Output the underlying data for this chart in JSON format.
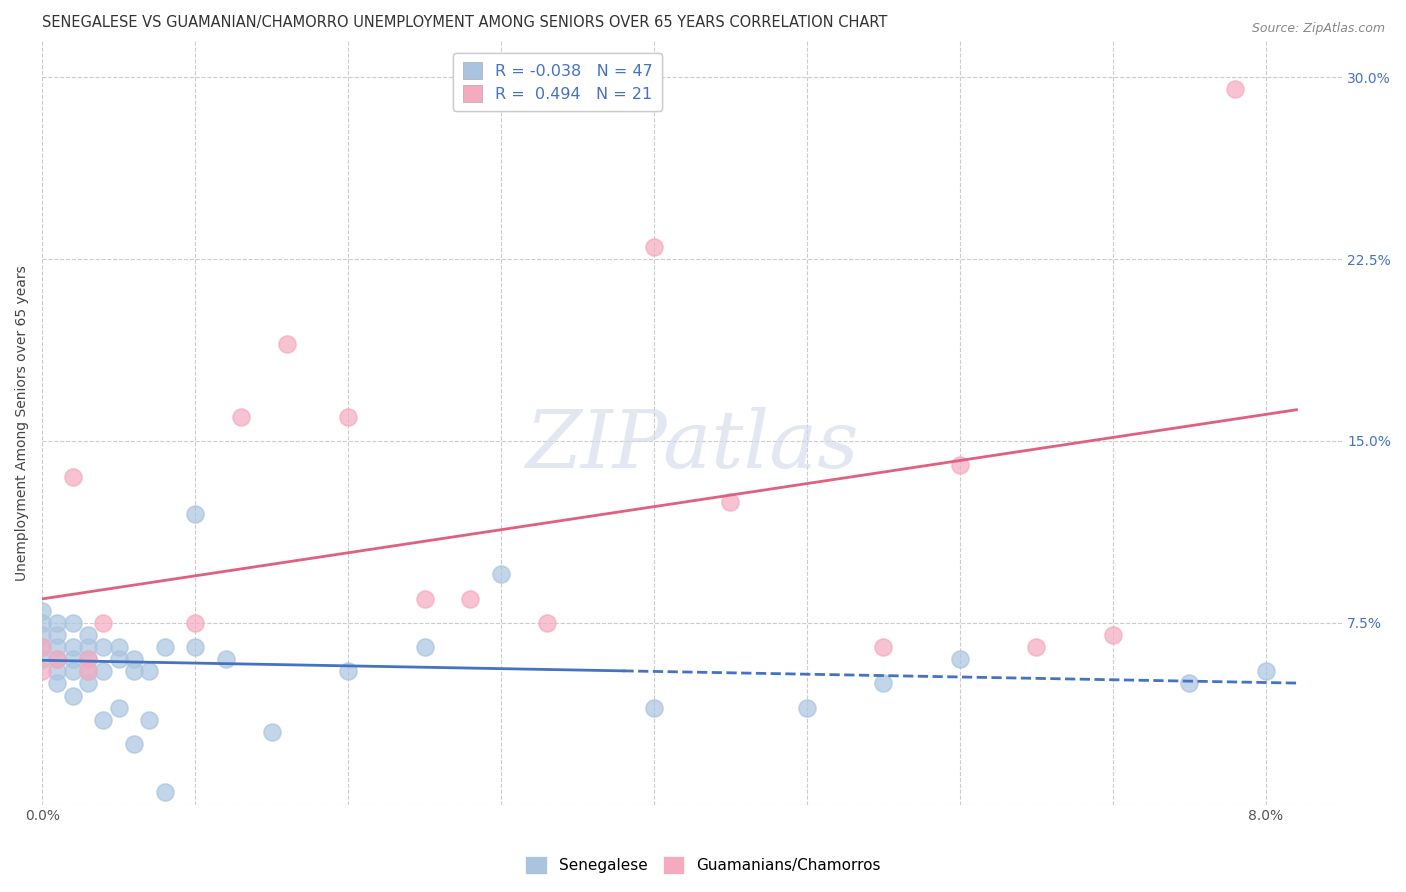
{
  "title": "SENEGALESE VS GUAMANIAN/CHAMORRO UNEMPLOYMENT AMONG SENIORS OVER 65 YEARS CORRELATION CHART",
  "source": "Source: ZipAtlas.com",
  "ylabel": "Unemployment Among Seniors over 65 years",
  "ylim": [
    0.0,
    0.315
  ],
  "xlim": [
    0.0,
    0.085
  ],
  "yticks": [
    0.0,
    0.075,
    0.15,
    0.225,
    0.3
  ],
  "ytick_labels_right": [
    "",
    "7.5%",
    "15.0%",
    "22.5%",
    "30.0%"
  ],
  "xtick_vals": [
    0.0,
    0.01,
    0.02,
    0.03,
    0.04,
    0.05,
    0.06,
    0.07,
    0.08
  ],
  "xtick_labels": [
    "0.0%",
    "",
    "",
    "",
    "",
    "",
    "",
    "",
    "8.0%"
  ],
  "sen_x": [
    0.0,
    0.0,
    0.0,
    0.0,
    0.0,
    0.001,
    0.001,
    0.001,
    0.001,
    0.001,
    0.001,
    0.002,
    0.002,
    0.002,
    0.002,
    0.002,
    0.003,
    0.003,
    0.003,
    0.003,
    0.003,
    0.004,
    0.004,
    0.004,
    0.005,
    0.005,
    0.005,
    0.006,
    0.006,
    0.006,
    0.007,
    0.007,
    0.008,
    0.008,
    0.01,
    0.01,
    0.012,
    0.015,
    0.02,
    0.025,
    0.03,
    0.04,
    0.05,
    0.055,
    0.06,
    0.075,
    0.08
  ],
  "sen_y": [
    0.06,
    0.065,
    0.07,
    0.075,
    0.08,
    0.05,
    0.055,
    0.06,
    0.065,
    0.07,
    0.075,
    0.045,
    0.055,
    0.06,
    0.065,
    0.075,
    0.05,
    0.055,
    0.06,
    0.065,
    0.07,
    0.035,
    0.055,
    0.065,
    0.04,
    0.06,
    0.065,
    0.025,
    0.055,
    0.06,
    0.035,
    0.055,
    0.005,
    0.065,
    0.065,
    0.12,
    0.06,
    0.03,
    0.055,
    0.065,
    0.095,
    0.04,
    0.04,
    0.05,
    0.06,
    0.05,
    0.055
  ],
  "gua_x": [
    0.0,
    0.0,
    0.001,
    0.002,
    0.003,
    0.003,
    0.004,
    0.01,
    0.013,
    0.016,
    0.02,
    0.025,
    0.028,
    0.033,
    0.04,
    0.045,
    0.055,
    0.06,
    0.065,
    0.07,
    0.078
  ],
  "gua_y": [
    0.055,
    0.065,
    0.06,
    0.135,
    0.055,
    0.06,
    0.075,
    0.075,
    0.16,
    0.19,
    0.16,
    0.085,
    0.085,
    0.075,
    0.23,
    0.125,
    0.065,
    0.14,
    0.065,
    0.07,
    0.295
  ],
  "sen_color": "#aac4df",
  "gua_color": "#f5aabf",
  "sen_line_color": "#4472c4",
  "gua_line_color": "#e06080",
  "R_sen": -0.038,
  "N_sen": 47,
  "R_gua": 0.494,
  "N_gua": 21,
  "watermark_text": "ZIPatlas",
  "title_fontsize": 10.5,
  "tick_fontsize": 10,
  "legend_fontsize": 11.5
}
